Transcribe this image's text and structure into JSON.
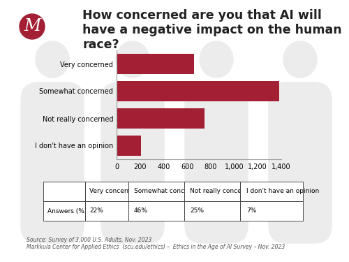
{
  "chart_data": {
    "type": "bar",
    "orientation": "horizontal",
    "title": "How concerned are you that AI will have a negative impact on the human race?",
    "categories": [
      "Very concerned",
      "Somewhat concerned",
      "Not really concerned",
      "I don't have an opinion"
    ],
    "values": [
      660,
      1380,
      750,
      210
    ],
    "color": "#a31f34",
    "xlim": [
      0,
      1400
    ],
    "xticks": [
      0,
      200,
      400,
      600,
      800,
      {
        "value": 1000,
        "label": "1,000"
      },
      {
        "value": 1200,
        "label": "1,200"
      },
      {
        "value": 1400,
        "label": "1,400"
      }
    ],
    "grid": false
  },
  "logo": "M",
  "table": {
    "header": [
      "Very concerned",
      "Somewhat concerned",
      "Not really concerned",
      "I don't have an opinion"
    ],
    "rows": [
      [
        "Answers (%)",
        "22%",
        "46%",
        "25%",
        "7%"
      ]
    ]
  },
  "source": [
    "Source: Survey of 3,000 U.S. Adults, Nov. 2023",
    "Markkula Center for Applied Ethics  (scu.edu/ethics) –  Ethics in the Age of AI Survey – Nov. 2023"
  ]
}
